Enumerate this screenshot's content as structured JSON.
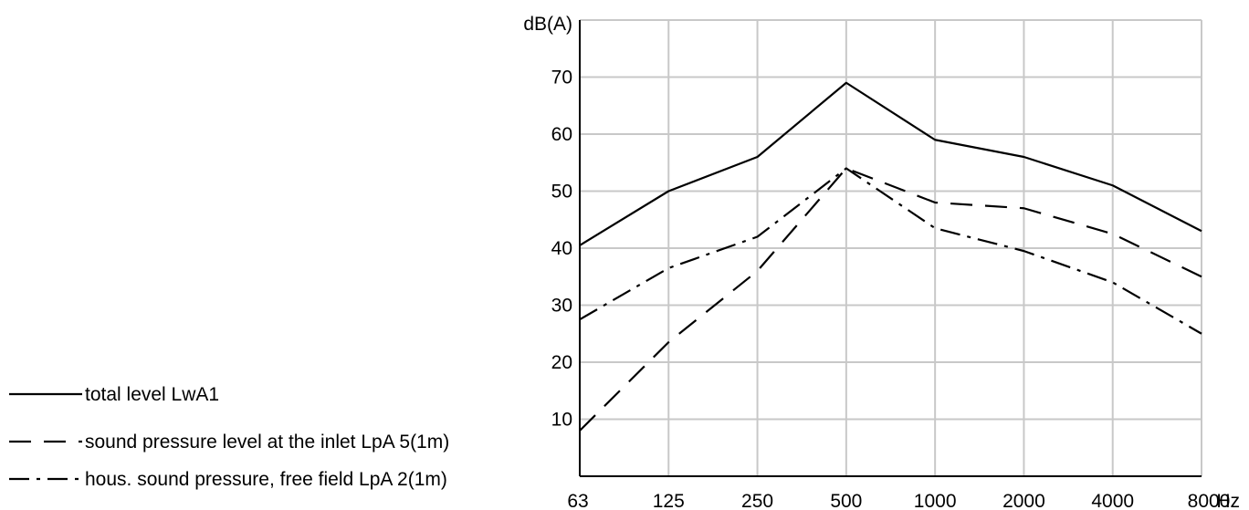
{
  "chart_data": {
    "type": "line",
    "title": "",
    "ylabel": "dB(A)",
    "xunit": "Hz",
    "categories": [
      "63",
      "125",
      "250",
      "500",
      "1000",
      "2000",
      "4000",
      "8000"
    ],
    "ylim": [
      0,
      80
    ],
    "yticks": [
      10,
      20,
      30,
      40,
      50,
      60,
      70
    ],
    "grid": true,
    "legend_position": "bottom-left",
    "series": [
      {
        "name": "total level LwA1",
        "dash": "solid",
        "values": [
          40.5,
          50,
          56,
          69,
          59,
          56,
          51,
          43
        ]
      },
      {
        "name": "sound pressure level at the inlet LpA 5(1m)",
        "dash": "dashed",
        "values": [
          8,
          23.5,
          36,
          54,
          48,
          47,
          42.5,
          35
        ]
      },
      {
        "name": "hous. sound pressure, free field LpA 2(1m)",
        "dash": "dashdot",
        "values": [
          27.5,
          36.5,
          42,
          54,
          43.5,
          39.5,
          34,
          25
        ]
      }
    ]
  }
}
